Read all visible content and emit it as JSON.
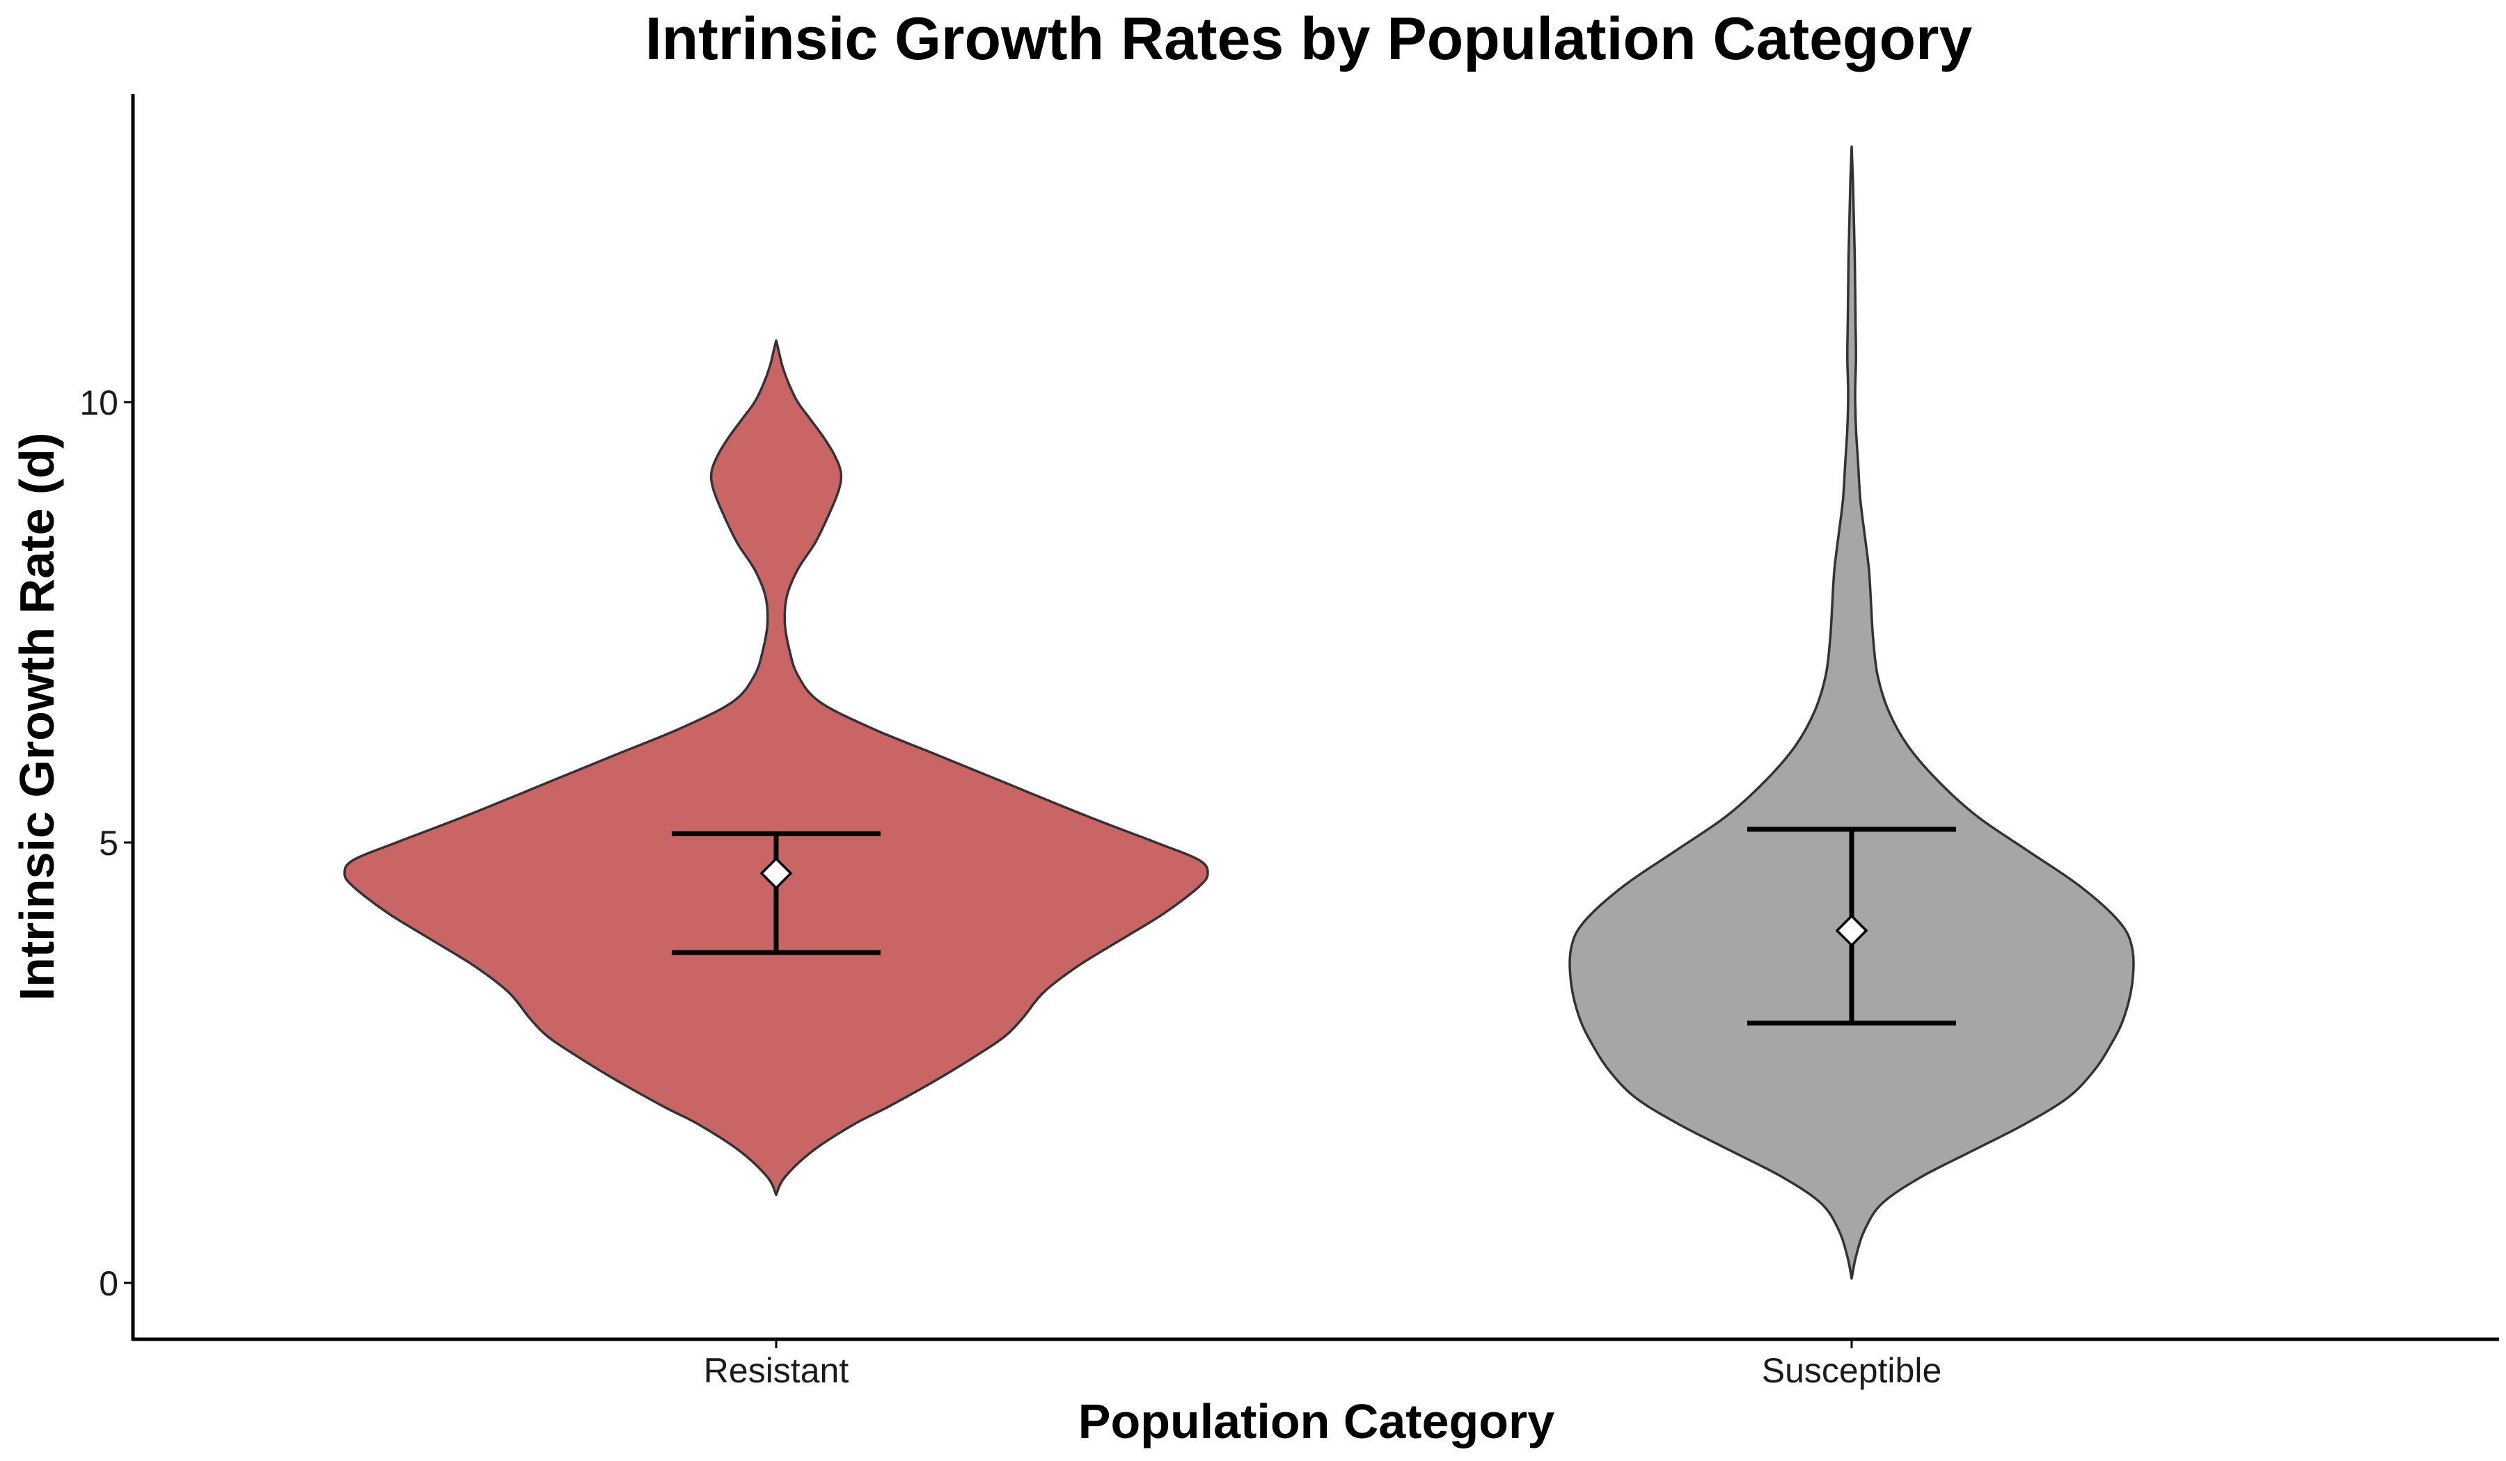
{
  "chart_data": {
    "type": "violin",
    "title": "Intrinsic Growth Rates by Population Category",
    "xlabel": "Population Category",
    "ylabel": "Intrinsic Growth Rate (d)",
    "categories": [
      "Resistant",
      "Susceptible"
    ],
    "ylim": [
      -0.6,
      13.5
    ],
    "yticks": [
      0,
      5,
      10
    ],
    "ytick_labels": [
      "0",
      "5",
      "10"
    ],
    "grid": false,
    "legend": "none",
    "series": [
      {
        "category": "Resistant",
        "fill_color": "#c96665",
        "range": [
          1.0,
          10.7
        ],
        "mean": 4.65,
        "error_low": 3.75,
        "error_high": 5.1,
        "density": [
          [
            1.0,
            0.0
          ],
          [
            1.2,
            0.02
          ],
          [
            1.5,
            0.085
          ],
          [
            1.8,
            0.18
          ],
          [
            2.0,
            0.26
          ],
          [
            2.3,
            0.37
          ],
          [
            2.6,
            0.47
          ],
          [
            2.8,
            0.53
          ],
          [
            3.0,
            0.57
          ],
          [
            3.3,
            0.62
          ],
          [
            3.6,
            0.7
          ],
          [
            3.9,
            0.8
          ],
          [
            4.2,
            0.9
          ],
          [
            4.5,
            0.98
          ],
          [
            4.65,
            1.0
          ],
          [
            4.8,
            0.98
          ],
          [
            5.0,
            0.88
          ],
          [
            5.3,
            0.72
          ],
          [
            5.7,
            0.52
          ],
          [
            6.0,
            0.37
          ],
          [
            6.3,
            0.22
          ],
          [
            6.6,
            0.1
          ],
          [
            6.9,
            0.05
          ],
          [
            7.2,
            0.03
          ],
          [
            7.5,
            0.02
          ],
          [
            7.8,
            0.025
          ],
          [
            8.1,
            0.05
          ],
          [
            8.4,
            0.09
          ],
          [
            8.7,
            0.12
          ],
          [
            9.0,
            0.145
          ],
          [
            9.2,
            0.15
          ],
          [
            9.4,
            0.135
          ],
          [
            9.6,
            0.11
          ],
          [
            9.8,
            0.08
          ],
          [
            10.0,
            0.05
          ],
          [
            10.2,
            0.03
          ],
          [
            10.4,
            0.015
          ],
          [
            10.6,
            0.005
          ],
          [
            10.7,
            0.0
          ]
        ]
      },
      {
        "category": "Susceptible",
        "fill_color": "#a6a6a6",
        "range": [
          0.05,
          12.9
        ],
        "mean": 4.0,
        "error_low": 2.95,
        "error_high": 5.15,
        "density": [
          [
            0.05,
            0.0
          ],
          [
            0.3,
            0.01
          ],
          [
            0.6,
            0.03
          ],
          [
            0.9,
            0.07
          ],
          [
            1.2,
            0.16
          ],
          [
            1.5,
            0.28
          ],
          [
            1.8,
            0.4
          ],
          [
            2.1,
            0.5
          ],
          [
            2.4,
            0.56
          ],
          [
            2.7,
            0.6
          ],
          [
            3.0,
            0.63
          ],
          [
            3.4,
            0.65
          ],
          [
            3.8,
            0.65
          ],
          [
            4.1,
            0.62
          ],
          [
            4.5,
            0.53
          ],
          [
            4.9,
            0.41
          ],
          [
            5.3,
            0.29
          ],
          [
            5.7,
            0.2
          ],
          [
            6.1,
            0.13
          ],
          [
            6.5,
            0.085
          ],
          [
            6.9,
            0.06
          ],
          [
            7.3,
            0.05
          ],
          [
            7.7,
            0.045
          ],
          [
            8.1,
            0.04
          ],
          [
            8.5,
            0.03
          ],
          [
            8.9,
            0.02
          ],
          [
            9.3,
            0.015
          ],
          [
            9.7,
            0.01
          ],
          [
            10.1,
            0.008
          ],
          [
            10.5,
            0.01
          ],
          [
            10.9,
            0.009
          ],
          [
            11.3,
            0.008
          ],
          [
            11.7,
            0.007
          ],
          [
            12.1,
            0.005
          ],
          [
            12.5,
            0.003
          ],
          [
            12.9,
            0.0
          ]
        ]
      }
    ]
  }
}
